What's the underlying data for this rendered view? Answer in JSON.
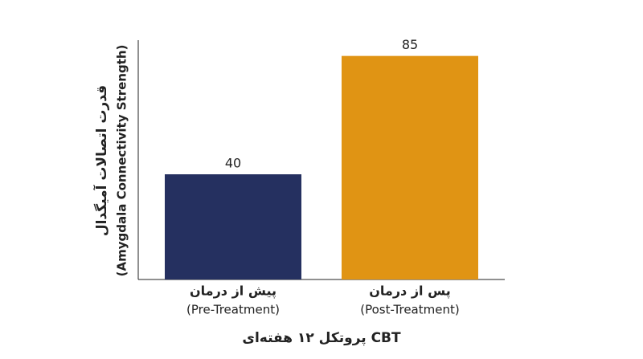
{
  "chart_data": {
    "type": "bar",
    "categories": [
      [
        "پیش از درمان",
        "(Pre-Treatment)"
      ],
      [
        "پس از درمان",
        "(Post-Treatment)"
      ]
    ],
    "values": [
      40,
      85
    ],
    "colors": [
      "#253060",
      "#e09414"
    ],
    "ylabel": [
      "قدرت اتصالات آمیگدال",
      "(Amygdala Connectivity Strength)"
    ],
    "xlabel": "پروتکل ۱۲ هفته‌ای CBT",
    "ylim": [
      0,
      91
    ],
    "yticks": [],
    "data_labels": true
  }
}
